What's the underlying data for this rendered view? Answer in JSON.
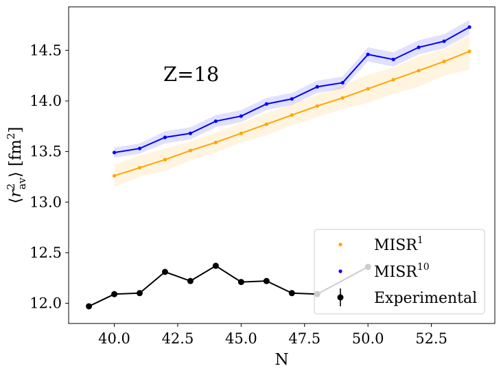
{
  "chart_data": {
    "type": "line",
    "annotation": "Z=18",
    "xlabel": "N",
    "ylabel": "⟨r²av⟩ [fm²]",
    "ylabel_parts": {
      "r": "r",
      "sup": "2",
      "sub": "av",
      "unit": "fm",
      "unit_sup": "2"
    },
    "xlim": [
      38.2,
      55.0
    ],
    "ylim": [
      11.8,
      14.93
    ],
    "xticks": [
      40.0,
      42.5,
      45.0,
      47.5,
      50.0,
      52.5
    ],
    "xtick_labels": [
      "40.0",
      "42.5",
      "45.0",
      "47.5",
      "50.0",
      "52.5"
    ],
    "yticks": [
      12.0,
      12.5,
      13.0,
      13.5,
      14.0,
      14.5
    ],
    "ytick_labels": [
      "12.0",
      "12.5",
      "13.0",
      "13.5",
      "14.0",
      "14.5"
    ],
    "legend_position": "lower-right",
    "series": [
      {
        "name": "MISR",
        "name_sup": "1",
        "color": "#FFA500",
        "band_color": "#FFA500",
        "x": [
          40,
          41,
          42,
          43,
          44,
          45,
          46,
          47,
          48,
          49,
          50,
          51,
          52,
          53,
          54
        ],
        "values": [
          13.26,
          13.34,
          13.42,
          13.51,
          13.59,
          13.68,
          13.77,
          13.86,
          13.95,
          14.03,
          14.12,
          14.21,
          14.3,
          14.39,
          14.49
        ],
        "lower": [
          13.15,
          13.25,
          13.31,
          13.41,
          13.49,
          13.59,
          13.66,
          13.76,
          13.84,
          13.92,
          13.98,
          14.07,
          14.14,
          14.25,
          14.31
        ],
        "upper": [
          13.37,
          13.46,
          13.53,
          13.6,
          13.69,
          13.78,
          13.88,
          13.97,
          14.06,
          14.15,
          14.26,
          14.33,
          14.44,
          14.51,
          14.65
        ]
      },
      {
        "name": "MISR",
        "name_sup": "10",
        "color": "#0000FF",
        "band_color": "#0000FF",
        "x": [
          40,
          41,
          42,
          43,
          44,
          45,
          46,
          47,
          48,
          49,
          50,
          51,
          52,
          53,
          54
        ],
        "values": [
          13.49,
          13.53,
          13.64,
          13.68,
          13.8,
          13.85,
          13.97,
          14.02,
          14.14,
          14.18,
          14.46,
          14.41,
          14.53,
          14.59,
          14.73
        ],
        "lower": [
          13.44,
          13.48,
          13.58,
          13.62,
          13.74,
          13.79,
          13.91,
          13.96,
          14.08,
          14.12,
          14.39,
          14.34,
          14.46,
          14.52,
          14.66
        ],
        "upper": [
          13.54,
          13.58,
          13.7,
          13.74,
          13.86,
          13.91,
          14.03,
          14.08,
          14.2,
          14.24,
          14.53,
          14.48,
          14.6,
          14.66,
          14.8
        ]
      },
      {
        "name": "Experimental",
        "color": "#000000",
        "x": [
          39,
          40,
          41,
          42,
          43,
          44,
          45,
          46,
          47,
          48,
          50
        ],
        "values": [
          11.97,
          12.09,
          12.1,
          12.31,
          12.22,
          12.37,
          12.21,
          12.22,
          12.1,
          12.09,
          12.36
        ]
      }
    ]
  }
}
